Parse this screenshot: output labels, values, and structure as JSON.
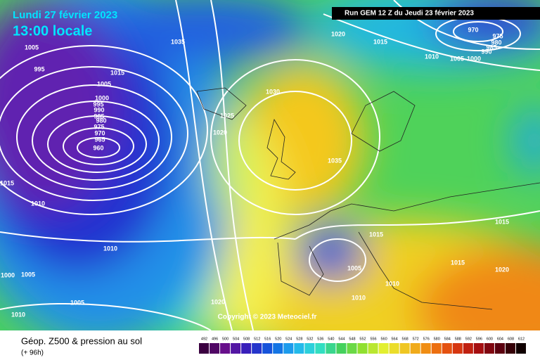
{
  "header": {
    "date": "Lundi 27 février 2023",
    "time": "13:00 locale",
    "run": "Run GEM 12 Z du Jeudi 23 février 2023"
  },
  "isobar_labels": [
    1005,
    995,
    1015,
    1005,
    1000,
    995,
    990,
    985,
    980,
    975,
    970,
    965,
    960,
    1035,
    1020,
    1015,
    970,
    975,
    980,
    985,
    990,
    1010,
    1005,
    1000,
    1030,
    1025,
    1020,
    1035,
    1015,
    1010,
    1015,
    1015,
    1010,
    1015,
    1020,
    1005,
    1000,
    1005,
    1010,
    1010,
    1005,
    1020,
    1010
  ],
  "copyright": "Copyright © 2023 Meteociel.fr",
  "footer": {
    "title": "Géop. Z500 & pression au sol",
    "subtitle": "(+ 96h)"
  },
  "scale": [
    492,
    496,
    500,
    504,
    508,
    512,
    516,
    520,
    524,
    528,
    532,
    536,
    540,
    544,
    548,
    552,
    556,
    560,
    564,
    568,
    572,
    576,
    580,
    584,
    588,
    592,
    596,
    600,
    604,
    608,
    612
  ]
}
